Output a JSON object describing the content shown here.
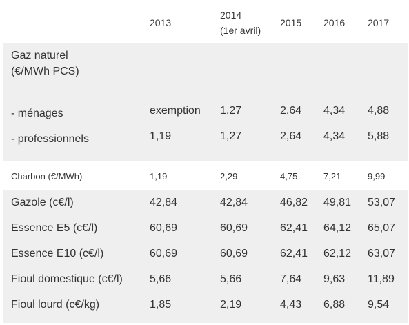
{
  "table": {
    "headers": [
      "",
      "2013",
      "2014\n(1er avril)",
      "2015",
      "2016",
      "2017"
    ],
    "header_years": {
      "y2013": "2013",
      "y2014_line1": "2014",
      "y2014_line2": "(1er avril)",
      "y2015": "2015",
      "y2016": "2016",
      "y2017": "2017"
    },
    "gaz_section": {
      "title_line1": "Gaz naturel",
      "title_line2": "(€/MWh PCS)",
      "rows": [
        {
          "label": "- ménages",
          "v2013": "exemption",
          "v2014": "1,27",
          "v2015": "2,64",
          "v2016": "4,34",
          "v2017": "4,88"
        },
        {
          "label": "- professionnels",
          "v2013": "1,19",
          "v2014": "1,27",
          "v2015": "2,64",
          "v2016": "4,34",
          "v2017": "5,88"
        }
      ]
    },
    "charbon": {
      "label": "Charbon (€/MWh)",
      "v2013": "1,19",
      "v2014": "2,29",
      "v2015": "4,75",
      "v2016": "7,21",
      "v2017": "9,99"
    },
    "rows": [
      {
        "label": "Gazole (c€/l)",
        "v2013": "42,84",
        "v2014": "42,84",
        "v2015": "46,82",
        "v2016": "49,81",
        "v2017": "53,07"
      },
      {
        "label": "Essence E5 (c€/l)",
        "v2013": "60,69",
        "v2014": "60,69",
        "v2015": "62,41",
        "v2016": "64,12",
        "v2017": "65,07"
      },
      {
        "label": "Essence E10 (c€/l)",
        "v2013": "60,69",
        "v2014": "60,69",
        "v2015": "62,41",
        "v2016": "62,12",
        "v2017": "63,07"
      },
      {
        "label": "Fioul domestique (c€/l)",
        "v2013": "5,66",
        "v2014": "5,66",
        "v2015": "7,64",
        "v2016": "9,63",
        "v2017": "11,89"
      },
      {
        "label": "Fioul lourd (c€/kg)",
        "v2013": "1,85",
        "v2014": "2,19",
        "v2015": "4,43",
        "v2016": "6,88",
        "v2017": "9,54"
      }
    ]
  },
  "colors": {
    "row_shade": "#efefef",
    "row_white": "#ffffff",
    "text": "#333333"
  }
}
